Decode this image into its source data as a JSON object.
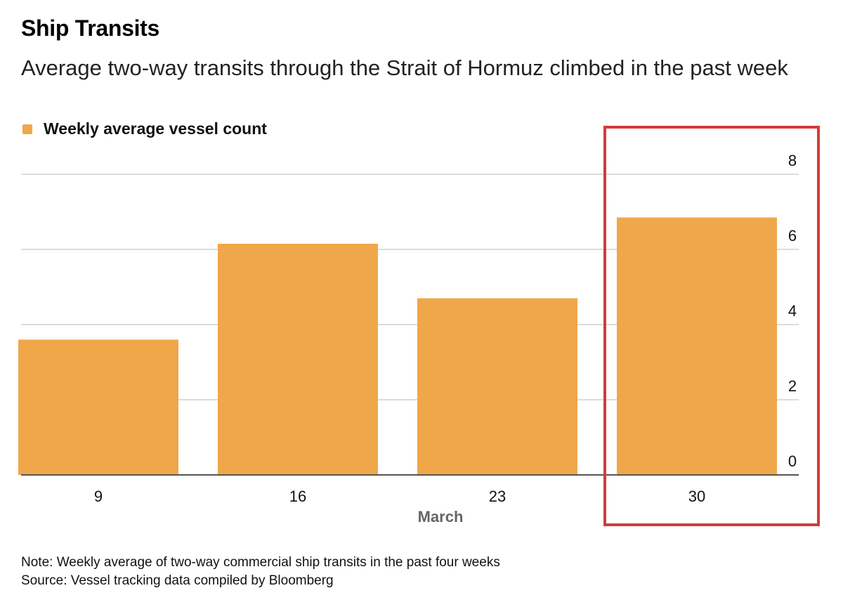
{
  "header": {
    "title": "Ship Transits",
    "subtitle": "Average two-way transits through the Strait of Hormuz climbed in the past week"
  },
  "legend": {
    "label": "Weekly average vessel count",
    "color": "#f0a74a"
  },
  "highlight": {
    "color": "#d43a3a"
  },
  "chart_data": {
    "type": "bar",
    "categories": [
      "9",
      "16",
      "23",
      "30"
    ],
    "values": [
      3.6,
      6.15,
      4.7,
      6.85
    ],
    "xlabel": "March",
    "ylabel": "",
    "ylim": [
      0,
      8
    ],
    "yticks": [
      "0",
      "2",
      "4",
      "6",
      "8"
    ],
    "ytick_values": [
      0,
      2,
      4,
      6,
      8
    ],
    "y_axis_side": "right",
    "grid": true,
    "highlighted_category": "30",
    "bar_color": "#f0a74a"
  },
  "footer": {
    "note": "Note: Weekly average of two-way commercial ship transits in the past four weeks",
    "source": "Source: Vessel tracking data compiled by Bloomberg"
  }
}
